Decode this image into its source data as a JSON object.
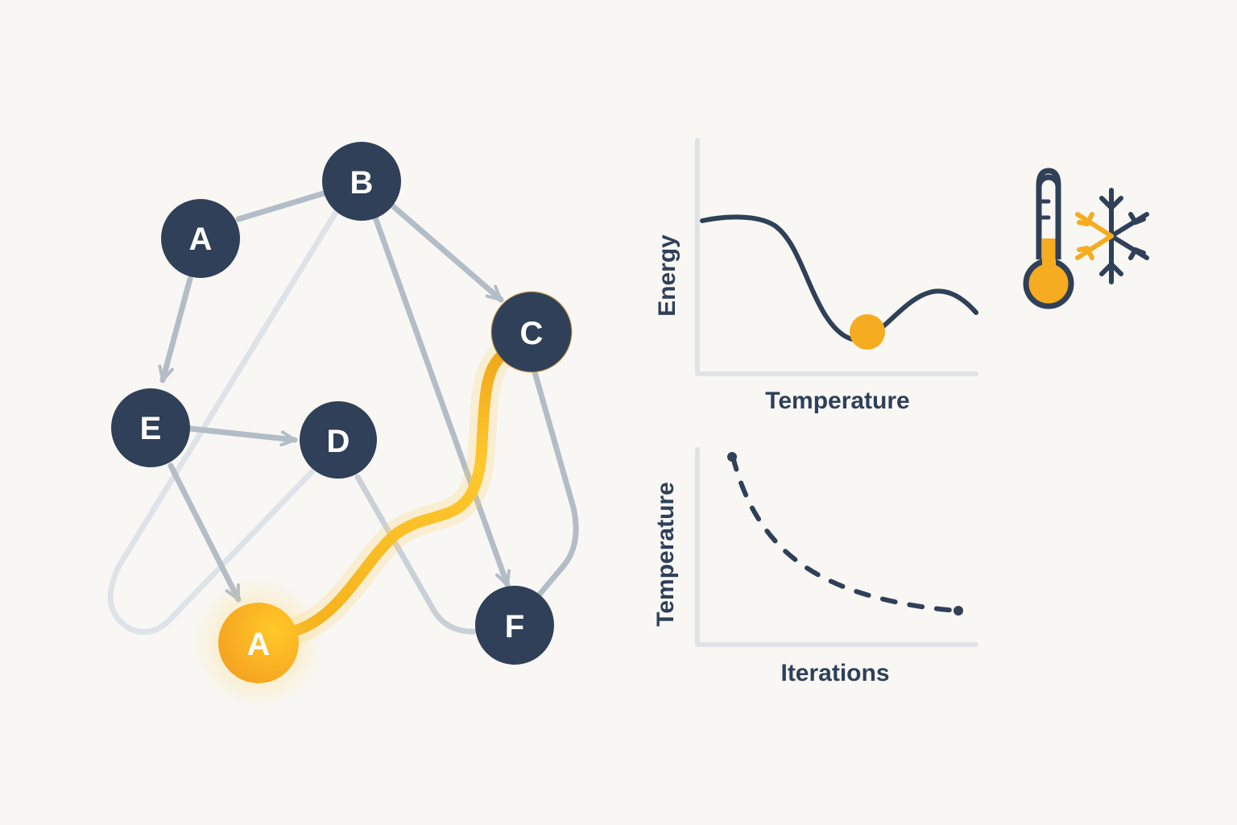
{
  "colors": {
    "background": "#f8f7f4",
    "node_fill": "#2f4058",
    "node_text": "#ffffff",
    "edge": "#b3bdc7",
    "edge_faint": "#dde3e8",
    "highlight": "#f5ac20",
    "highlight_light": "#ffc933",
    "axis": "#dfe3e6",
    "curve": "#2f4058"
  },
  "graph": {
    "nodes": [
      {
        "id": "A1",
        "label": "A"
      },
      {
        "id": "B",
        "label": "B"
      },
      {
        "id": "C",
        "label": "C"
      },
      {
        "id": "E",
        "label": "E"
      },
      {
        "id": "D",
        "label": "D"
      },
      {
        "id": "F",
        "label": "F"
      },
      {
        "id": "A2",
        "label": "A",
        "highlighted": true
      }
    ]
  },
  "energy_chart": {
    "xlabel": "Temperature",
    "ylabel": "Energy",
    "marker": "global-minimum-dot"
  },
  "cooling_chart": {
    "xlabel": "Iterations",
    "ylabel": "Temperature",
    "line_style": "dashed"
  },
  "icons": [
    "thermometer-icon",
    "snowflake-icon"
  ]
}
